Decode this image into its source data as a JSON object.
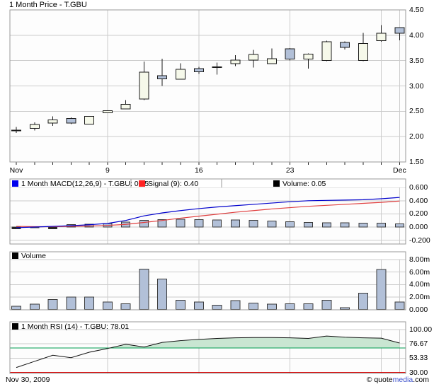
{
  "title": "1 Month Price - T.GBU",
  "x_axis": {
    "labels": [
      {
        "text": "Nov",
        "index": 0
      },
      {
        "text": "9",
        "index": 5
      },
      {
        "text": "16",
        "index": 10
      },
      {
        "text": "23",
        "index": 15
      },
      {
        "text": "Dec",
        "index": 21
      }
    ]
  },
  "legends": {
    "macd": [
      {
        "swatch": "#0000ee",
        "label": "1 Month MACD(12,26,9) - T.GBU: 0.45"
      },
      {
        "swatch": "#ff2222",
        "label": "Signal (9): 0.40"
      },
      {
        "swatch": "#000000",
        "label": "Volume: 0.05"
      }
    ],
    "volume": [
      {
        "swatch": "#000000",
        "label": "Volume"
      }
    ],
    "rsi": [
      {
        "swatch": "#000000",
        "label": "1 Month  RSI (14) - T.GBU: 78.01"
      }
    ]
  },
  "footer": {
    "date": "Nov 30, 2009",
    "credit": {
      "prefix": "© quote",
      "brand": "media",
      "suffix": ".com"
    }
  },
  "colors": {
    "background": "#ffffff",
    "plot_bg": "#fdfdfd",
    "border": "#999999",
    "grid": "#cccccc",
    "tick": "#222222",
    "up_fill": "#f6f9ea",
    "down_fill": "#b2c0d8",
    "candle_stroke": "#1a1a1a",
    "macd_line": "#0000cc",
    "signal_line": "#e04040",
    "hist_fill": "#b2c0d8",
    "hist_neg_fill": "#111111",
    "bar_stroke": "#3a3a3a",
    "volume_fill": "#b2c0d8",
    "rsi_line": "#111111",
    "rsi_fill": "#c9e6d2",
    "overbought_line": "#009a4e",
    "oversold_line": "#d40000",
    "brand_blue": "#3c51cc"
  },
  "chart_data": [
    {
      "panel": "price",
      "type": "candlestick",
      "title": "1 Month Price - T.GBU",
      "ylim": [
        1.5,
        4.5
      ],
      "y_ticks": [
        {
          "v": 4.5,
          "label": "4.50"
        },
        {
          "v": 4.0,
          "label": "4.00"
        },
        {
          "v": 3.5,
          "label": "3.50"
        },
        {
          "v": 3.0,
          "label": "3.00"
        },
        {
          "v": 2.5,
          "label": "2.50"
        },
        {
          "v": 2.0,
          "label": "2.00"
        },
        {
          "v": 1.5,
          "label": "1.50"
        }
      ],
      "ohlc": [
        [
          2.13,
          2.19,
          2.07,
          2.13
        ],
        [
          2.16,
          2.28,
          2.12,
          2.24
        ],
        [
          2.27,
          2.4,
          2.21,
          2.33
        ],
        [
          2.36,
          2.38,
          2.25,
          2.27
        ],
        [
          2.25,
          2.41,
          2.24,
          2.4
        ],
        [
          2.47,
          2.52,
          2.46,
          2.51
        ],
        [
          2.55,
          2.72,
          2.54,
          2.64
        ],
        [
          2.74,
          3.48,
          2.72,
          3.27
        ],
        [
          3.2,
          3.54,
          3.0,
          3.14
        ],
        [
          3.13,
          3.45,
          3.13,
          3.33
        ],
        [
          3.34,
          3.38,
          3.24,
          3.28
        ],
        [
          3.38,
          3.46,
          3.22,
          3.38
        ],
        [
          3.44,
          3.61,
          3.39,
          3.51
        ],
        [
          3.51,
          3.71,
          3.36,
          3.62
        ],
        [
          3.44,
          3.74,
          3.44,
          3.54
        ],
        [
          3.73,
          3.75,
          3.5,
          3.53
        ],
        [
          3.53,
          3.64,
          3.34,
          3.63
        ],
        [
          3.5,
          3.89,
          3.49,
          3.87
        ],
        [
          3.86,
          3.88,
          3.72,
          3.76
        ],
        [
          3.5,
          4.05,
          3.49,
          3.84
        ],
        [
          3.89,
          4.2,
          3.87,
          4.04
        ],
        [
          4.15,
          4.16,
          3.9,
          4.04
        ]
      ]
    },
    {
      "panel": "macd",
      "type": "line",
      "ylim": [
        -0.2,
        0.6
      ],
      "y_ticks": [
        {
          "v": 0.6,
          "label": "0.600"
        },
        {
          "v": 0.4,
          "label": "0.400"
        },
        {
          "v": 0.2,
          "label": "0.200"
        },
        {
          "v": 0.0,
          "label": "0.000"
        },
        {
          "v": -0.2,
          "label": "-0.200"
        }
      ],
      "series": [
        {
          "name": "MACD(12,26,9)",
          "current": 0.45,
          "values": [
            -0.01,
            0.0,
            0.01,
            0.02,
            0.035,
            0.055,
            0.1,
            0.17,
            0.215,
            0.25,
            0.28,
            0.305,
            0.325,
            0.345,
            0.365,
            0.385,
            0.4,
            0.405,
            0.41,
            0.415,
            0.43,
            0.45
          ]
        },
        {
          "name": "Signal (9)",
          "current": 0.4,
          "values": [
            0.01,
            0.005,
            0.005,
            0.01,
            0.015,
            0.025,
            0.04,
            0.07,
            0.1,
            0.135,
            0.165,
            0.195,
            0.225,
            0.25,
            0.275,
            0.295,
            0.315,
            0.33,
            0.345,
            0.36,
            0.375,
            0.395
          ]
        },
        {
          "name": "Histogram",
          "current": 0.05,
          "render": "bar",
          "values": [
            -0.025,
            -0.008,
            -0.028,
            0.035,
            0.045,
            0.055,
            0.075,
            0.1,
            0.115,
            0.12,
            0.115,
            0.11,
            0.105,
            0.1,
            0.09,
            0.08,
            0.07,
            0.065,
            0.065,
            0.06,
            0.06,
            0.05
          ]
        }
      ]
    },
    {
      "panel": "volume",
      "type": "bar",
      "ylim_millions": [
        0,
        8
      ],
      "y_ticks": [
        {
          "v": 8,
          "label": "8.00m"
        },
        {
          "v": 6,
          "label": "6.00m"
        },
        {
          "v": 4,
          "label": "4.00m"
        },
        {
          "v": 2,
          "label": "2.00m"
        },
        {
          "v": 0,
          "label": "0.000"
        }
      ],
      "values_millions": [
        0.5,
        0.85,
        1.6,
        2.0,
        2.0,
        1.2,
        0.9,
        6.5,
        4.9,
        1.5,
        1.2,
        0.7,
        1.4,
        1.05,
        0.85,
        0.9,
        0.9,
        1.45,
        0.3,
        2.6,
        6.4,
        1.2
      ]
    },
    {
      "panel": "rsi",
      "type": "line",
      "current": 78.01,
      "ylim": [
        30,
        100
      ],
      "y_ticks": [
        {
          "v": 100,
          "label": "100.00"
        },
        {
          "v": 76.67,
          "label": "76.67"
        },
        {
          "v": 53.33,
          "label": "53.33"
        },
        {
          "v": 30,
          "label": "30.00"
        }
      ],
      "overbought": 70,
      "oversold": 30,
      "values": [
        38,
        48,
        58,
        54,
        63,
        69,
        76,
        71.5,
        79,
        82,
        84,
        85.5,
        86.5,
        87,
        87,
        86.5,
        85.5,
        89.5,
        87.5,
        86.5,
        86,
        78
      ]
    }
  ]
}
